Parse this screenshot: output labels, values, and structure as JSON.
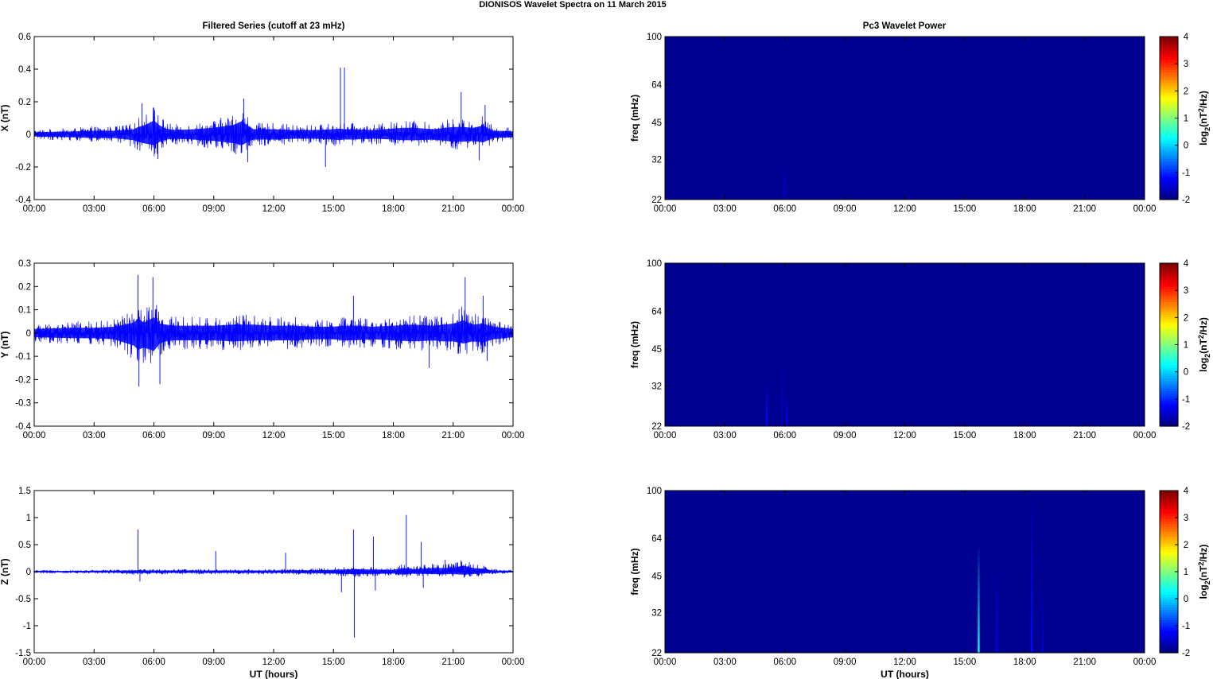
{
  "figure": {
    "title": "DIONISOS Wavelet Spectra on 11 March     2015",
    "left_title": "Filtered Series (cutoff at 23 mHz)",
    "right_title": "Pc3 Wavelet Power",
    "xlabel": "UT (hours)"
  },
  "chart_data": [
    {
      "type": "line",
      "title": "Filtered Series (cutoff at 23 mHz)",
      "xlabel": "",
      "ylabel": "X (nT)",
      "xticks": [
        "00:00",
        "03:00",
        "06:00",
        "09:00",
        "12:00",
        "15:00",
        "18:00",
        "21:00",
        "00:00"
      ],
      "xlim": [
        0,
        24
      ],
      "ylim": [
        -0.4,
        0.6
      ],
      "yticks": [
        "-0.4",
        "-0.2",
        "0",
        "0.2",
        "0.4",
        "0.6"
      ],
      "ytick_values": [
        -0.4,
        -0.2,
        0,
        0.2,
        0.4,
        0.6
      ],
      "line_color": "#0000ff",
      "envelope": {
        "x": [
          0,
          1,
          2,
          3,
          4,
          5,
          5.2,
          5.5,
          6,
          6.3,
          6.6,
          7,
          8,
          9,
          10,
          10.4,
          10.8,
          11,
          12,
          13,
          14,
          15,
          15.3,
          15.5,
          16,
          17,
          18,
          18.5,
          19,
          20,
          21,
          21.5,
          22,
          22.5,
          23,
          24
        ],
        "upper": [
          0.03,
          0.035,
          0.04,
          0.05,
          0.05,
          0.07,
          0.1,
          0.12,
          0.19,
          0.12,
          0.08,
          0.06,
          0.07,
          0.09,
          0.13,
          0.18,
          0.1,
          0.07,
          0.07,
          0.06,
          0.06,
          0.07,
          0.08,
          0.07,
          0.07,
          0.06,
          0.08,
          0.09,
          0.09,
          0.07,
          0.1,
          0.1,
          0.09,
          0.12,
          0.05,
          0.04
        ],
        "lower": [
          -0.03,
          -0.035,
          -0.04,
          -0.05,
          -0.05,
          -0.08,
          -0.1,
          -0.12,
          -0.15,
          -0.1,
          -0.07,
          -0.06,
          -0.07,
          -0.09,
          -0.12,
          -0.15,
          -0.09,
          -0.07,
          -0.07,
          -0.06,
          -0.06,
          -0.07,
          -0.08,
          -0.07,
          -0.07,
          -0.06,
          -0.07,
          -0.08,
          -0.08,
          -0.07,
          -0.1,
          -0.1,
          -0.09,
          -0.11,
          -0.05,
          -0.04
        ]
      },
      "spikes": [
        {
          "x": 5.4,
          "y": 0.19
        },
        {
          "x": 6.2,
          "y": -0.15
        },
        {
          "x": 10.5,
          "y": 0.22
        },
        {
          "x": 10.7,
          "y": -0.17
        },
        {
          "x": 14.6,
          "y": -0.2
        },
        {
          "x": 15.35,
          "y": 0.41
        },
        {
          "x": 15.55,
          "y": 0.41
        },
        {
          "x": 21.4,
          "y": 0.26
        },
        {
          "x": 22.3,
          "y": -0.16
        },
        {
          "x": 22.6,
          "y": 0.18
        }
      ]
    },
    {
      "type": "line",
      "title": "",
      "xlabel": "",
      "ylabel": "Y (nT)",
      "xticks": [
        "00:00",
        "03:00",
        "06:00",
        "09:00",
        "12:00",
        "15:00",
        "18:00",
        "21:00",
        "00:00"
      ],
      "xlim": [
        0,
        24
      ],
      "ylim": [
        -0.4,
        0.3
      ],
      "yticks": [
        "-0.4",
        "-0.3",
        "-0.2",
        "-0.1",
        "0",
        "0.1",
        "0.2",
        "0.3"
      ],
      "ytick_values": [
        -0.4,
        -0.3,
        -0.2,
        -0.1,
        0,
        0.1,
        0.2,
        0.3
      ],
      "line_color": "#0000ff",
      "envelope": {
        "x": [
          0,
          1,
          2,
          3,
          4,
          5,
          5.2,
          5.5,
          6,
          6.3,
          6.6,
          7,
          8,
          9,
          10,
          11,
          12,
          13,
          14,
          15,
          15.5,
          16,
          17,
          18,
          19,
          20,
          20.5,
          21,
          21.5,
          22,
          22.5,
          23,
          24
        ],
        "upper": [
          0.04,
          0.045,
          0.05,
          0.05,
          0.06,
          0.1,
          0.14,
          0.1,
          0.15,
          0.09,
          0.08,
          0.07,
          0.07,
          0.07,
          0.08,
          0.08,
          0.07,
          0.07,
          0.06,
          0.06,
          0.07,
          0.07,
          0.06,
          0.07,
          0.08,
          0.07,
          0.08,
          0.09,
          0.12,
          0.08,
          0.09,
          0.06,
          0.04
        ],
        "lower": [
          -0.04,
          -0.045,
          -0.05,
          -0.05,
          -0.06,
          -0.12,
          -0.16,
          -0.14,
          -0.17,
          -0.1,
          -0.08,
          -0.07,
          -0.07,
          -0.07,
          -0.08,
          -0.07,
          -0.07,
          -0.07,
          -0.06,
          -0.06,
          -0.07,
          -0.07,
          -0.06,
          -0.07,
          -0.08,
          -0.07,
          -0.08,
          -0.08,
          -0.1,
          -0.08,
          -0.09,
          -0.06,
          -0.04
        ]
      },
      "spikes": [
        {
          "x": 5.2,
          "y": 0.25
        },
        {
          "x": 5.25,
          "y": -0.23
        },
        {
          "x": 5.95,
          "y": 0.24
        },
        {
          "x": 6.3,
          "y": -0.22
        },
        {
          "x": 16.0,
          "y": 0.16
        },
        {
          "x": 19.8,
          "y": -0.15
        },
        {
          "x": 21.6,
          "y": 0.24
        },
        {
          "x": 22.5,
          "y": 0.16
        },
        {
          "x": 22.7,
          "y": -0.12
        }
      ]
    },
    {
      "type": "line",
      "title": "",
      "xlabel": "UT (hours)",
      "ylabel": "Z (nT)",
      "xticks": [
        "00:00",
        "03:00",
        "06:00",
        "09:00",
        "12:00",
        "15:00",
        "18:00",
        "21:00",
        "00:00"
      ],
      "xlim": [
        0,
        24
      ],
      "ylim": [
        -1.5,
        1.5
      ],
      "yticks": [
        "-1.5",
        "-1",
        "-0.5",
        "0",
        "0.5",
        "1",
        "1.5"
      ],
      "ytick_values": [
        -1.5,
        -1,
        -0.5,
        0,
        0.5,
        1,
        1.5
      ],
      "line_color": "#0000ff",
      "envelope": {
        "x": [
          0,
          2,
          4,
          5,
          6,
          8,
          10,
          12,
          14,
          15,
          16,
          17,
          18,
          18.5,
          19,
          20,
          21,
          21.5,
          22,
          22.5,
          23,
          24
        ],
        "upper": [
          0.03,
          0.03,
          0.04,
          0.06,
          0.05,
          0.05,
          0.05,
          0.05,
          0.06,
          0.08,
          0.1,
          0.09,
          0.08,
          0.15,
          0.1,
          0.15,
          0.15,
          0.25,
          0.15,
          0.12,
          0.05,
          0.03
        ],
        "lower": [
          -0.03,
          -0.03,
          -0.04,
          -0.06,
          -0.05,
          -0.05,
          -0.05,
          -0.05,
          -0.06,
          -0.08,
          -0.1,
          -0.09,
          -0.08,
          -0.12,
          -0.08,
          -0.1,
          -0.1,
          -0.12,
          -0.1,
          -0.08,
          -0.05,
          -0.03
        ]
      },
      "spikes": [
        {
          "x": 5.2,
          "y": 0.78
        },
        {
          "x": 5.3,
          "y": -0.18
        },
        {
          "x": 9.1,
          "y": 0.38
        },
        {
          "x": 12.6,
          "y": 0.35
        },
        {
          "x": 15.4,
          "y": -0.38
        },
        {
          "x": 16.0,
          "y": 0.78
        },
        {
          "x": 16.05,
          "y": -1.22
        },
        {
          "x": 17.0,
          "y": 0.65
        },
        {
          "x": 17.1,
          "y": -0.35
        },
        {
          "x": 18.65,
          "y": 1.05
        },
        {
          "x": 19.4,
          "y": 0.55
        },
        {
          "x": 19.5,
          "y": -0.3
        },
        {
          "x": 20.6,
          "y": 0.22
        }
      ]
    },
    {
      "type": "heatmap",
      "title": "Pc3 Wavelet Power",
      "xlabel": "",
      "ylabel": "freq (mHz)",
      "colorbar_label": "log2(nT2/Hz)",
      "xticks": [
        "00:00",
        "03:00",
        "06:00",
        "09:00",
        "12:00",
        "15:00",
        "18:00",
        "21:00",
        "00:00"
      ],
      "xlim": [
        0,
        24
      ],
      "ylim": [
        22,
        100
      ],
      "yscale": "log",
      "yticks": [
        "22",
        "32",
        "45",
        "64",
        "100"
      ],
      "ytick_values": [
        22,
        32,
        45,
        64,
        100
      ],
      "clim": [
        -2,
        4
      ],
      "cticks": [
        "-2",
        "-1",
        "0",
        "1",
        "2",
        "3",
        "4"
      ],
      "background_value": -1.9,
      "features": [
        {
          "x": 5.95,
          "f_low": 22,
          "f_high": 32,
          "value": -1.6
        },
        {
          "x": 6.05,
          "f_low": 22,
          "f_high": 30,
          "value": -1.7
        }
      ]
    },
    {
      "type": "heatmap",
      "title": "",
      "xlabel": "",
      "ylabel": "freq (mHz)",
      "colorbar_label": "log2(nT2/Hz)",
      "xticks": [
        "00:00",
        "03:00",
        "06:00",
        "09:00",
        "12:00",
        "15:00",
        "18:00",
        "21:00",
        "00:00"
      ],
      "xlim": [
        0,
        24
      ],
      "ylim": [
        22,
        100
      ],
      "yscale": "log",
      "yticks": [
        "22",
        "32",
        "45",
        "64",
        "100"
      ],
      "ytick_values": [
        22,
        32,
        45,
        64,
        100
      ],
      "clim": [
        -2,
        4
      ],
      "cticks": [
        "-2",
        "-1",
        "0",
        "1",
        "2",
        "3",
        "4"
      ],
      "background_value": -1.9,
      "features": [
        {
          "x": 5.1,
          "f_low": 22,
          "f_high": 34,
          "value": -1.2
        },
        {
          "x": 5.85,
          "f_low": 22,
          "f_high": 45,
          "value": -1.6
        },
        {
          "x": 6.1,
          "f_low": 22,
          "f_high": 30,
          "value": -1.3
        }
      ]
    },
    {
      "type": "heatmap",
      "title": "",
      "xlabel": "UT (hours)",
      "ylabel": "freq (mHz)",
      "colorbar_label": "log2(nT2/Hz)",
      "xticks": [
        "00:00",
        "03:00",
        "06:00",
        "09:00",
        "12:00",
        "15:00",
        "18:00",
        "21:00",
        "00:00"
      ],
      "xlim": [
        0,
        24
      ],
      "ylim": [
        22,
        100
      ],
      "yscale": "log",
      "yticks": [
        "22",
        "32",
        "45",
        "64",
        "100"
      ],
      "ytick_values": [
        22,
        32,
        45,
        64,
        100
      ],
      "clim": [
        -2,
        4
      ],
      "cticks": [
        "-2",
        "-1",
        "0",
        "1",
        "2",
        "3",
        "4"
      ],
      "background_value": -1.9,
      "features": [
        {
          "x": 15.7,
          "f_low": 22,
          "f_high": 60,
          "value": 0.3
        },
        {
          "x": 16.6,
          "f_low": 22,
          "f_high": 52,
          "value": -1.4
        },
        {
          "x": 18.35,
          "f_low": 22,
          "f_high": 100,
          "value": -1.2
        },
        {
          "x": 18.9,
          "f_low": 22,
          "f_high": 42,
          "value": -1.5
        }
      ]
    }
  ]
}
